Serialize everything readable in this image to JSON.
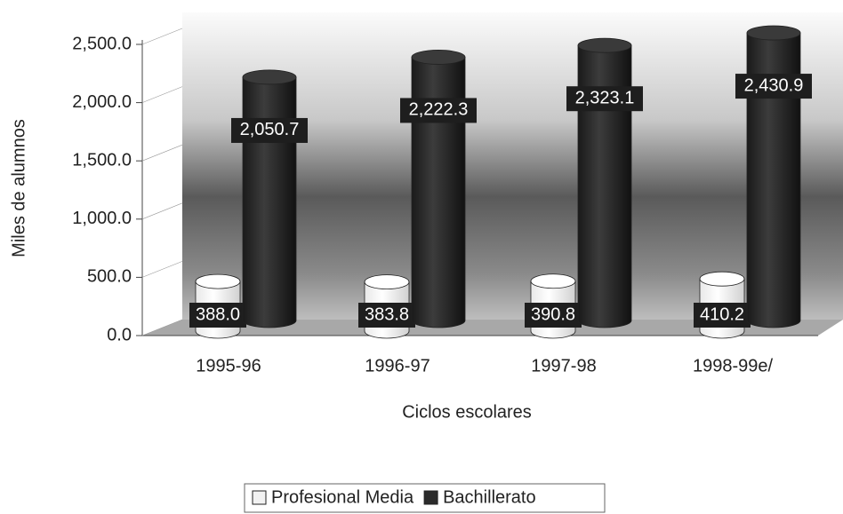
{
  "chart_data": {
    "type": "bar",
    "y_label": "Miles de alumnos",
    "x_label": "Ciclos escolares",
    "categories": [
      "1995-96",
      "1996-97",
      "1997-98",
      "1998-99e/"
    ],
    "series": [
      {
        "name": "Profesional Media",
        "color": "#f2f2f2",
        "values": [
          388.0,
          383.8,
          390.8,
          410.2
        ],
        "value_labels": [
          "388.0",
          "383.8",
          "390.8",
          "410.2"
        ]
      },
      {
        "name": "Bachillerato",
        "color": "#2b2b2b",
        "values": [
          2050.7,
          2222.3,
          2323.1,
          2430.9
        ],
        "value_labels": [
          "2,050.7",
          "2,222.3",
          "2,323.1",
          "2,430.9"
        ]
      }
    ],
    "ylim": [
      0,
      2500
    ],
    "yticks": [
      {
        "value": 0,
        "label": "0.0"
      },
      {
        "value": 500,
        "label": "500.0"
      },
      {
        "value": 1000,
        "label": "1,000.0"
      },
      {
        "value": 1500,
        "label": "1,500.0"
      },
      {
        "value": 2000,
        "label": "2,000.0"
      },
      {
        "value": 2500,
        "label": "2,500.0"
      }
    ],
    "legend": "bottom"
  }
}
